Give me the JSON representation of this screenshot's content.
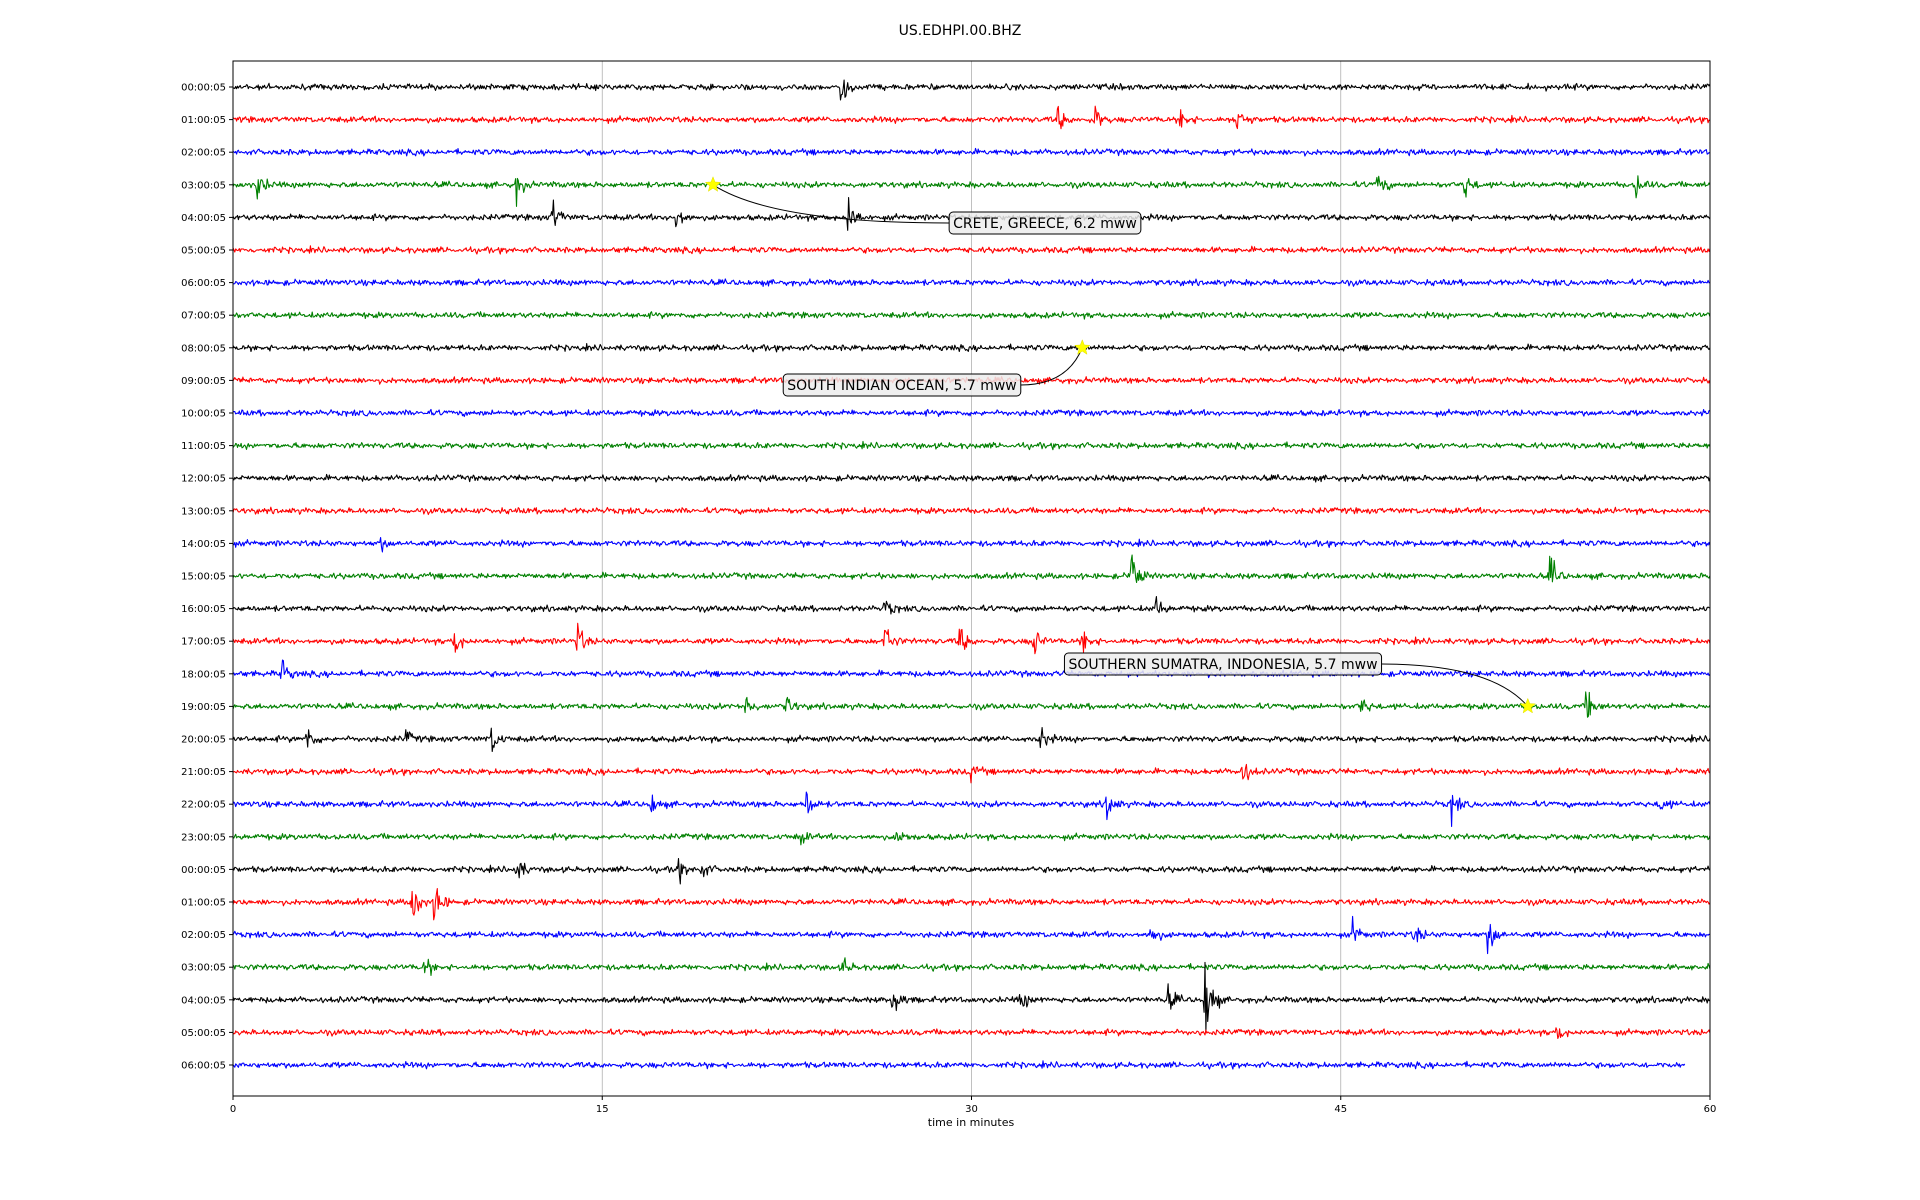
{
  "chart_data": {
    "type": "line",
    "title": "US.EDHPI.00.BHZ",
    "xlabel": "time in minutes",
    "ylabel": "",
    "xlim": [
      0,
      60
    ],
    "x_ticks": [
      "0",
      "15",
      "30",
      "45",
      "60"
    ],
    "x_tick_values": [
      0,
      15,
      30,
      45,
      60
    ],
    "grid": "vertical",
    "row_labels": [
      "00:00:05",
      "01:00:05",
      "02:00:05",
      "03:00:05",
      "04:00:05",
      "05:00:05",
      "06:00:05",
      "07:00:05",
      "08:00:05",
      "09:00:05",
      "10:00:05",
      "11:00:05",
      "12:00:05",
      "13:00:05",
      "14:00:05",
      "15:00:05",
      "16:00:05",
      "17:00:05",
      "18:00:05",
      "19:00:05",
      "20:00:05",
      "21:00:05",
      "22:00:05",
      "23:00:05",
      "00:00:05",
      "01:00:05",
      "02:00:05",
      "03:00:05",
      "04:00:05",
      "05:00:05",
      "06:00:05"
    ],
    "trace_colors": [
      "#000000",
      "#ff0000",
      "#0000ff",
      "#008000"
    ],
    "last_row_end_minute": 59,
    "events": [
      {
        "label": "CRETE, GREECE, 6.2 mww",
        "row": 3,
        "minute": 19.5
      },
      {
        "label": "SOUTH INDIAN OCEAN, 5.7 mww",
        "row": 8,
        "minute": 34.5
      },
      {
        "label": "SOUTHERN SUMATRA, INDONESIA, 5.7 mww",
        "row": 19,
        "minute": 52.6
      }
    ],
    "bursts": [
      {
        "row": 0,
        "minute": 24.7,
        "amp": 1.0
      },
      {
        "row": 1,
        "minute": 33.5,
        "amp": 0.6
      },
      {
        "row": 1,
        "minute": 35.0,
        "amp": 0.6
      },
      {
        "row": 1,
        "minute": 38.5,
        "amp": 0.5
      },
      {
        "row": 1,
        "minute": 40.8,
        "amp": 0.9
      },
      {
        "row": 3,
        "minute": 1.0,
        "amp": 0.7
      },
      {
        "row": 3,
        "minute": 11.5,
        "amp": 0.7
      },
      {
        "row": 3,
        "minute": 46.5,
        "amp": 0.6
      },
      {
        "row": 3,
        "minute": 50.0,
        "amp": 0.7
      },
      {
        "row": 3,
        "minute": 57.0,
        "amp": 0.6
      },
      {
        "row": 4,
        "minute": 13.0,
        "amp": 0.8
      },
      {
        "row": 4,
        "minute": 18.0,
        "amp": 0.8
      },
      {
        "row": 4,
        "minute": 25.0,
        "amp": 1.2
      },
      {
        "row": 14,
        "minute": 6.0,
        "amp": 0.3
      },
      {
        "row": 15,
        "minute": 36.5,
        "amp": 1.5
      },
      {
        "row": 15,
        "minute": 53.5,
        "amp": 0.9
      },
      {
        "row": 16,
        "minute": 26.5,
        "amp": 0.5
      },
      {
        "row": 16,
        "minute": 37.5,
        "amp": 0.5
      },
      {
        "row": 17,
        "minute": 9.0,
        "amp": 0.7
      },
      {
        "row": 17,
        "minute": 14.0,
        "amp": 0.8
      },
      {
        "row": 17,
        "minute": 26.5,
        "amp": 1.0
      },
      {
        "row": 17,
        "minute": 29.5,
        "amp": 0.8
      },
      {
        "row": 17,
        "minute": 32.5,
        "amp": 0.8
      },
      {
        "row": 17,
        "minute": 34.5,
        "amp": 0.7
      },
      {
        "row": 18,
        "minute": 2.0,
        "amp": 0.6
      },
      {
        "row": 19,
        "minute": 20.8,
        "amp": 0.7
      },
      {
        "row": 19,
        "minute": 22.5,
        "amp": 0.5
      },
      {
        "row": 19,
        "minute": 45.8,
        "amp": 0.6
      },
      {
        "row": 19,
        "minute": 55.0,
        "amp": 1.0
      },
      {
        "row": 20,
        "minute": 3.0,
        "amp": 0.7
      },
      {
        "row": 20,
        "minute": 7.0,
        "amp": 0.4
      },
      {
        "row": 20,
        "minute": 10.5,
        "amp": 0.7
      },
      {
        "row": 20,
        "minute": 32.8,
        "amp": 0.7
      },
      {
        "row": 21,
        "minute": 30.0,
        "amp": 0.4
      },
      {
        "row": 21,
        "minute": 41.0,
        "amp": 0.7
      },
      {
        "row": 22,
        "minute": 17.0,
        "amp": 0.5
      },
      {
        "row": 22,
        "minute": 23.3,
        "amp": 0.7
      },
      {
        "row": 22,
        "minute": 35.5,
        "amp": 0.8
      },
      {
        "row": 22,
        "minute": 49.5,
        "amp": 0.7
      },
      {
        "row": 22,
        "minute": 58.0,
        "amp": 0.4
      },
      {
        "row": 23,
        "minute": 23.0,
        "amp": 0.4
      },
      {
        "row": 23,
        "minute": 27.0,
        "amp": 0.4
      },
      {
        "row": 24,
        "minute": 11.5,
        "amp": 0.8
      },
      {
        "row": 24,
        "minute": 18.0,
        "amp": 0.7
      },
      {
        "row": 24,
        "minute": 19.0,
        "amp": 0.5
      },
      {
        "row": 25,
        "minute": 7.3,
        "amp": 1.4
      },
      {
        "row": 25,
        "minute": 8.2,
        "amp": 1.3
      },
      {
        "row": 26,
        "minute": 37.3,
        "amp": 0.6
      },
      {
        "row": 26,
        "minute": 45.5,
        "amp": 0.6
      },
      {
        "row": 26,
        "minute": 48.0,
        "amp": 0.5
      },
      {
        "row": 26,
        "minute": 51.0,
        "amp": 1.1
      },
      {
        "row": 27,
        "minute": 7.8,
        "amp": 0.5
      },
      {
        "row": 27,
        "minute": 24.8,
        "amp": 0.4
      },
      {
        "row": 28,
        "minute": 26.8,
        "amp": 0.8
      },
      {
        "row": 28,
        "minute": 32.0,
        "amp": 0.5
      },
      {
        "row": 28,
        "minute": 38.0,
        "amp": 0.6
      },
      {
        "row": 28,
        "minute": 39.5,
        "amp": 2.5
      },
      {
        "row": 29,
        "minute": 53.8,
        "amp": 0.4
      }
    ]
  }
}
